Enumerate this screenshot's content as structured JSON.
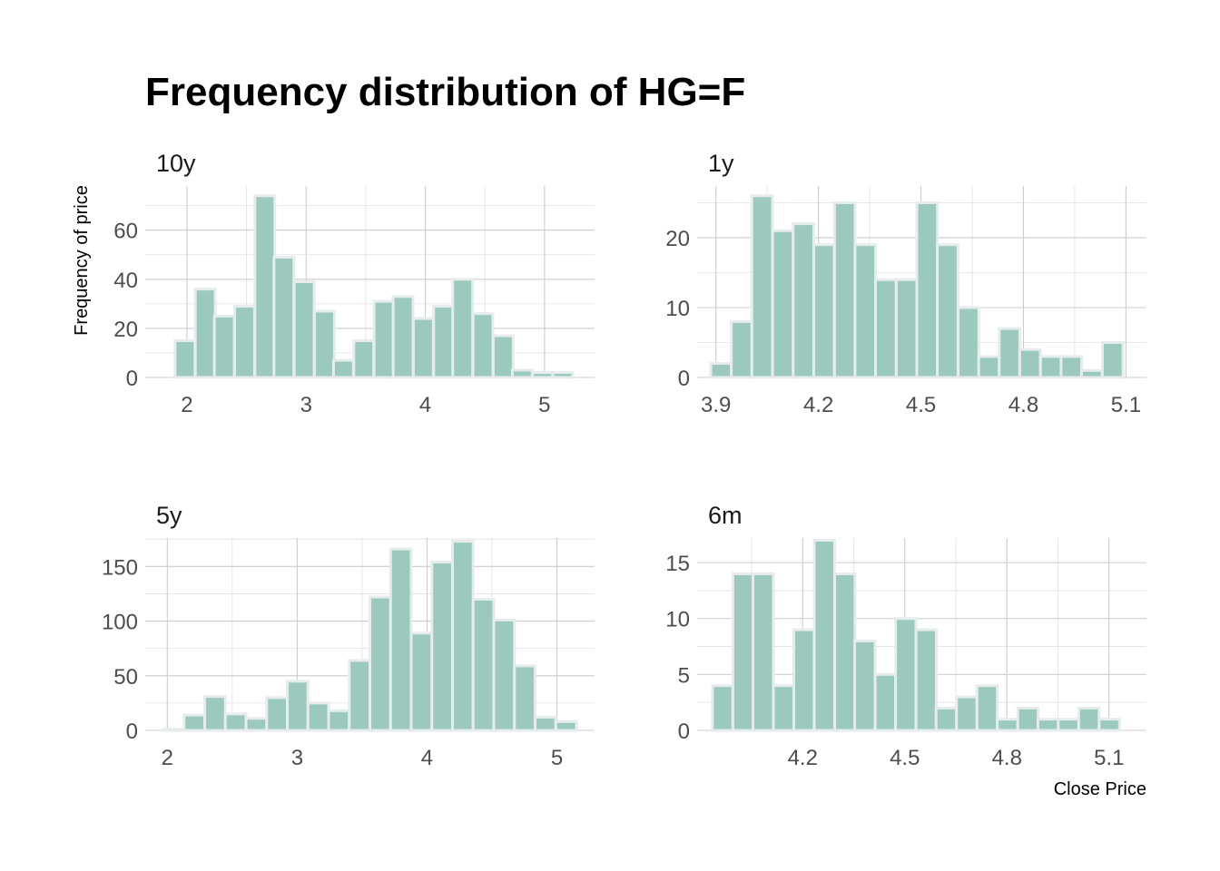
{
  "title": "Frequency distribution of HG=F",
  "axis_titles": {
    "x": "Close Price",
    "y": "Frequency of price"
  },
  "colors": {
    "bar_fill": "#9bc9bd",
    "bar_outline": "#e6ecec",
    "grid": "#cccccc",
    "background": "#ffffff"
  },
  "chart_data": [
    {
      "type": "bar",
      "panel": "10y",
      "bin_width": 0.167,
      "bins": [
        {
          "x0": 1.9,
          "count": 15
        },
        {
          "x0": 2.07,
          "count": 36
        },
        {
          "x0": 2.23,
          "count": 25
        },
        {
          "x0": 2.4,
          "count": 29
        },
        {
          "x0": 2.57,
          "count": 74
        },
        {
          "x0": 2.73,
          "count": 49
        },
        {
          "x0": 2.9,
          "count": 39
        },
        {
          "x0": 3.07,
          "count": 27
        },
        {
          "x0": 3.23,
          "count": 7
        },
        {
          "x0": 3.4,
          "count": 15
        },
        {
          "x0": 3.57,
          "count": 31
        },
        {
          "x0": 3.73,
          "count": 33
        },
        {
          "x0": 3.9,
          "count": 24
        },
        {
          "x0": 4.07,
          "count": 29
        },
        {
          "x0": 4.23,
          "count": 40
        },
        {
          "x0": 4.4,
          "count": 26
        },
        {
          "x0": 4.57,
          "count": 17
        },
        {
          "x0": 4.73,
          "count": 3
        },
        {
          "x0": 4.9,
          "count": 2
        },
        {
          "x0": 5.07,
          "count": 2
        }
      ],
      "xlim": [
        1.65,
        5.42
      ],
      "ylim": [
        0,
        78
      ],
      "x_ticks": [
        2,
        3,
        4,
        5
      ],
      "x_tick_labels": [
        "2",
        "3",
        "4",
        "5"
      ],
      "y_ticks": [
        0,
        20,
        40,
        60
      ],
      "y_tick_labels": [
        "0",
        "20",
        "40",
        "60"
      ]
    },
    {
      "type": "bar",
      "panel": "1y",
      "bin_width": 0.0603,
      "bins": [
        {
          "x0": 3.885,
          "count": 2
        },
        {
          "x0": 3.945,
          "count": 8
        },
        {
          "x0": 4.005,
          "count": 26
        },
        {
          "x0": 4.066,
          "count": 21
        },
        {
          "x0": 4.126,
          "count": 22
        },
        {
          "x0": 4.186,
          "count": 19
        },
        {
          "x0": 4.247,
          "count": 25
        },
        {
          "x0": 4.307,
          "count": 19
        },
        {
          "x0": 4.367,
          "count": 14
        },
        {
          "x0": 4.428,
          "count": 14
        },
        {
          "x0": 4.488,
          "count": 25
        },
        {
          "x0": 4.548,
          "count": 19
        },
        {
          "x0": 4.609,
          "count": 10
        },
        {
          "x0": 4.669,
          "count": 3
        },
        {
          "x0": 4.729,
          "count": 7
        },
        {
          "x0": 4.789,
          "count": 4
        },
        {
          "x0": 4.85,
          "count": 3
        },
        {
          "x0": 4.91,
          "count": 3
        },
        {
          "x0": 4.97,
          "count": 1
        },
        {
          "x0": 5.031,
          "count": 5
        }
      ],
      "xlim": [
        3.845,
        5.16
      ],
      "ylim": [
        0,
        27.4
      ],
      "x_ticks": [
        3.9,
        4.2,
        4.5,
        4.8,
        5.1
      ],
      "x_tick_labels": [
        "3.9",
        "4.2",
        "4.5",
        "4.8",
        "5.1"
      ],
      "y_ticks": [
        0,
        10,
        20
      ],
      "y_tick_labels": [
        "0",
        "10",
        "20"
      ]
    },
    {
      "type": "bar",
      "panel": "5y",
      "bin_width": 0.159,
      "bins": [
        {
          "x0": 1.97,
          "count": 1
        },
        {
          "x0": 2.129,
          "count": 14
        },
        {
          "x0": 2.288,
          "count": 31
        },
        {
          "x0": 2.447,
          "count": 15
        },
        {
          "x0": 2.606,
          "count": 11
        },
        {
          "x0": 2.765,
          "count": 30
        },
        {
          "x0": 2.924,
          "count": 45
        },
        {
          "x0": 3.083,
          "count": 25
        },
        {
          "x0": 3.242,
          "count": 18
        },
        {
          "x0": 3.401,
          "count": 64
        },
        {
          "x0": 3.56,
          "count": 122
        },
        {
          "x0": 3.719,
          "count": 166
        },
        {
          "x0": 3.878,
          "count": 89
        },
        {
          "x0": 4.037,
          "count": 154
        },
        {
          "x0": 4.196,
          "count": 173
        },
        {
          "x0": 4.355,
          "count": 120
        },
        {
          "x0": 4.514,
          "count": 101
        },
        {
          "x0": 4.673,
          "count": 59
        },
        {
          "x0": 4.832,
          "count": 12
        },
        {
          "x0": 4.991,
          "count": 8
        }
      ],
      "xlim": [
        1.83,
        5.29
      ],
      "ylim": [
        0,
        176
      ],
      "x_ticks": [
        2,
        3,
        4,
        5
      ],
      "x_tick_labels": [
        "2",
        "3",
        "4",
        "5"
      ],
      "y_ticks": [
        0,
        50,
        100,
        150
      ],
      "y_tick_labels": [
        "0",
        "50",
        "100",
        "150"
      ]
    },
    {
      "type": "bar",
      "panel": "6m",
      "bin_width": 0.0598,
      "bins": [
        {
          "x0": 3.935,
          "count": 4
        },
        {
          "x0": 3.995,
          "count": 14
        },
        {
          "x0": 4.054,
          "count": 14
        },
        {
          "x0": 4.114,
          "count": 4
        },
        {
          "x0": 4.174,
          "count": 9
        },
        {
          "x0": 4.234,
          "count": 17
        },
        {
          "x0": 4.294,
          "count": 14
        },
        {
          "x0": 4.353,
          "count": 8
        },
        {
          "x0": 4.413,
          "count": 5
        },
        {
          "x0": 4.473,
          "count": 10
        },
        {
          "x0": 4.533,
          "count": 9
        },
        {
          "x0": 4.592,
          "count": 2
        },
        {
          "x0": 4.652,
          "count": 3
        },
        {
          "x0": 4.712,
          "count": 4
        },
        {
          "x0": 4.772,
          "count": 1
        },
        {
          "x0": 4.832,
          "count": 2
        },
        {
          "x0": 4.891,
          "count": 1
        },
        {
          "x0": 4.951,
          "count": 1
        },
        {
          "x0": 5.011,
          "count": 2
        },
        {
          "x0": 5.071,
          "count": 1
        }
      ],
      "xlim": [
        3.89,
        5.21
      ],
      "ylim": [
        0,
        17.2
      ],
      "x_ticks": [
        4.2,
        4.5,
        4.8,
        5.1
      ],
      "x_tick_labels": [
        "4.2",
        "4.5",
        "4.8",
        "5.1"
      ],
      "y_ticks": [
        0,
        5,
        10,
        15
      ],
      "y_tick_labels": [
        "0",
        "5",
        "10",
        "15"
      ]
    }
  ]
}
